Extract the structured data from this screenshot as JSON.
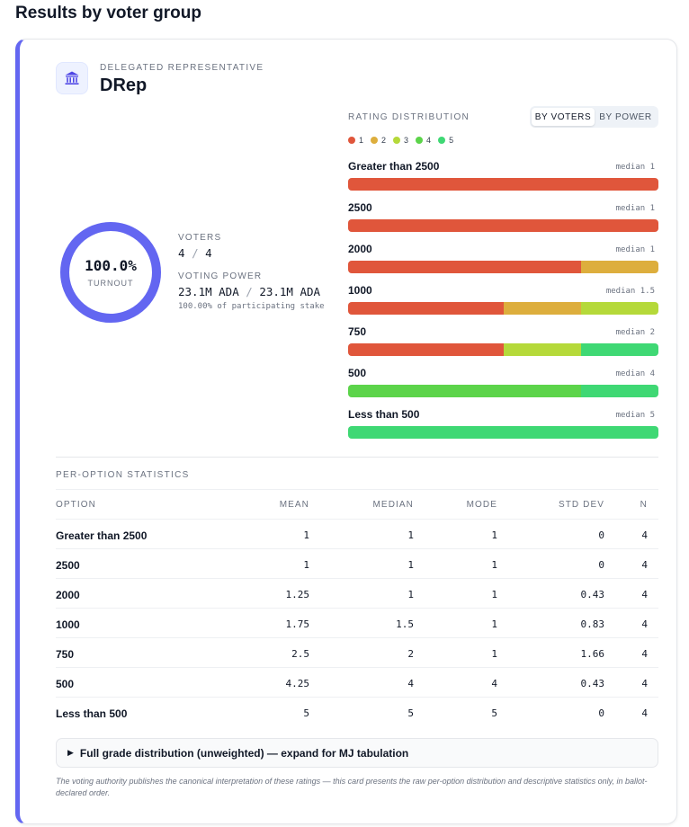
{
  "page_title": "Results by voter group",
  "group": {
    "eyebrow": "DELEGATED REPRESENTATIVE",
    "name": "DRep",
    "icon": "bank-icon"
  },
  "turnout": {
    "value": "100.0%",
    "label": "TURNOUT",
    "fraction": 1.0
  },
  "voters": {
    "label": "VOTERS",
    "count": "4",
    "sep": "/",
    "total": "4"
  },
  "voting_power": {
    "label": "VOTING POWER",
    "value": "23.1M ADA",
    "sep": "/",
    "total": "23.1M ADA",
    "note": "100.00% of participating stake"
  },
  "distribution": {
    "title": "RATING DISTRIBUTION",
    "toggle": [
      {
        "label": "BY VOTERS",
        "active": true
      },
      {
        "label": "BY POWER",
        "active": false
      }
    ],
    "legend": [
      {
        "label": "1",
        "color": "#e0563b"
      },
      {
        "label": "2",
        "color": "#ddae3d"
      },
      {
        "label": "3",
        "color": "#b5d93a"
      },
      {
        "label": "4",
        "color": "#5cd44a"
      },
      {
        "label": "5",
        "color": "#3fd874"
      }
    ],
    "options": [
      {
        "label": "Greater than 2500",
        "median": "median 1",
        "shares": [
          1,
          0,
          0,
          0,
          0
        ]
      },
      {
        "label": "2500",
        "median": "median 1",
        "shares": [
          1,
          0,
          0,
          0,
          0
        ]
      },
      {
        "label": "2000",
        "median": "median 1",
        "shares": [
          0.75,
          0.25,
          0,
          0,
          0
        ]
      },
      {
        "label": "1000",
        "median": "median 1.5",
        "shares": [
          0.5,
          0.25,
          0.25,
          0,
          0
        ]
      },
      {
        "label": "750",
        "median": "median 2",
        "shares": [
          0.5,
          0,
          0.25,
          0,
          0.25
        ]
      },
      {
        "label": "500",
        "median": "median 4",
        "shares": [
          0,
          0,
          0,
          0.75,
          0.25
        ]
      },
      {
        "label": "Less than 500",
        "median": "median 5",
        "shares": [
          0,
          0,
          0,
          0,
          1
        ]
      }
    ]
  },
  "stats": {
    "title": "PER-OPTION STATISTICS",
    "headers": [
      "OPTION",
      "MEAN",
      "MEDIAN",
      "MODE",
      "STD DEV",
      "N"
    ],
    "rows": [
      [
        "Greater than 2500",
        "1",
        "1",
        "1",
        "0",
        "4"
      ],
      [
        "2500",
        "1",
        "1",
        "1",
        "0",
        "4"
      ],
      [
        "2000",
        "1.25",
        "1",
        "1",
        "0.43",
        "4"
      ],
      [
        "1000",
        "1.75",
        "1.5",
        "1",
        "0.83",
        "4"
      ],
      [
        "750",
        "2.5",
        "2",
        "1",
        "1.66",
        "4"
      ],
      [
        "500",
        "4.25",
        "4",
        "4",
        "0.43",
        "4"
      ],
      [
        "Less than 500",
        "5",
        "5",
        "5",
        "0",
        "4"
      ]
    ]
  },
  "mj": {
    "arrow": "▶",
    "label": "Full grade distribution (unweighted) — expand for MJ tabulation"
  },
  "footnote": "The voting authority publishes the canonical interpretation of these ratings — this card presents the raw per-option distribution and descriptive statistics only, in ballot-declared order.",
  "colors": {
    "accent": "#6366f1",
    "ring_track": "#e0e7ff"
  }
}
